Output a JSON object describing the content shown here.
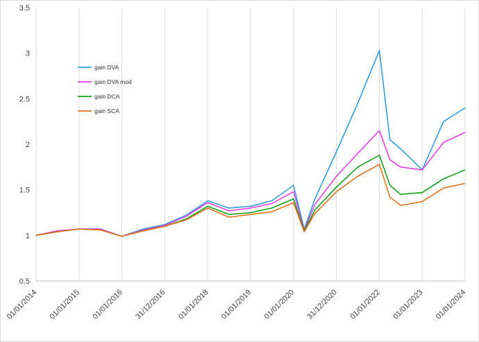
{
  "chart_data": {
    "type": "line",
    "title": "",
    "xlabel": "",
    "ylabel": "",
    "ylim": [
      0.5,
      3.5
    ],
    "yticks": [
      0.5,
      1,
      1.5,
      2,
      2.5,
      3,
      3.5
    ],
    "ytick_labels": [
      "0.5",
      "1",
      "1.5",
      "2",
      "2.5",
      "3",
      "3.5"
    ],
    "xlim": [
      "2014-01-01",
      "2024-01-01"
    ],
    "xticks": [
      "2014-01-01",
      "2015-01-01",
      "2016-01-01",
      "2016-12-31",
      "2018-01-01",
      "2019-01-01",
      "2020-01-01",
      "2020-12-31",
      "2022-01-01",
      "2023-01-01",
      "2024-01-01"
    ],
    "xtick_labels": [
      "01/01/2014",
      "01/01/2015",
      "01/01/2016",
      "31/12/2016",
      "01/01/2018",
      "01/01/2019",
      "01/01/2020",
      "31/12/2020",
      "01/01/2022",
      "01/01/2023",
      "01/01/2024"
    ],
    "grid": "vertical",
    "legend_position": "upper-left",
    "x": [
      "2014-01",
      "2014-07",
      "2015-01",
      "2015-07",
      "2016-01",
      "2016-07",
      "2017-01",
      "2017-07",
      "2018-01",
      "2018-07",
      "2019-01",
      "2019-07",
      "2020-01",
      "2020-04",
      "2020-07",
      "2021-01",
      "2021-07",
      "2022-01",
      "2022-04",
      "2022-07",
      "2023-01",
      "2023-07",
      "2024-01"
    ],
    "series": [
      {
        "name": "gain DVA",
        "color": "#2e9fd8",
        "values": [
          1.0,
          1.05,
          1.07,
          1.07,
          0.99,
          1.07,
          1.12,
          1.22,
          1.38,
          1.3,
          1.32,
          1.38,
          1.55,
          1.07,
          1.4,
          1.92,
          2.45,
          3.03,
          2.05,
          1.95,
          1.72,
          2.25,
          2.4
        ]
      },
      {
        "name": "gain DVA mod",
        "color": "#e23fe6",
        "values": [
          1.0,
          1.05,
          1.07,
          1.07,
          0.99,
          1.06,
          1.11,
          1.21,
          1.36,
          1.27,
          1.3,
          1.35,
          1.48,
          1.06,
          1.34,
          1.65,
          1.9,
          2.15,
          1.83,
          1.75,
          1.72,
          2.02,
          2.13
        ]
      },
      {
        "name": "gain DCA",
        "color": "#12a018",
        "values": [
          1.0,
          1.04,
          1.07,
          1.06,
          0.99,
          1.05,
          1.1,
          1.18,
          1.32,
          1.23,
          1.25,
          1.3,
          1.4,
          1.05,
          1.28,
          1.53,
          1.75,
          1.88,
          1.55,
          1.45,
          1.47,
          1.62,
          1.72
        ]
      },
      {
        "name": "gain SCA",
        "color": "#e2721c",
        "values": [
          1.0,
          1.04,
          1.07,
          1.06,
          0.99,
          1.05,
          1.1,
          1.17,
          1.3,
          1.2,
          1.23,
          1.26,
          1.36,
          1.04,
          1.24,
          1.48,
          1.65,
          1.78,
          1.42,
          1.33,
          1.37,
          1.52,
          1.57
        ]
      }
    ]
  }
}
